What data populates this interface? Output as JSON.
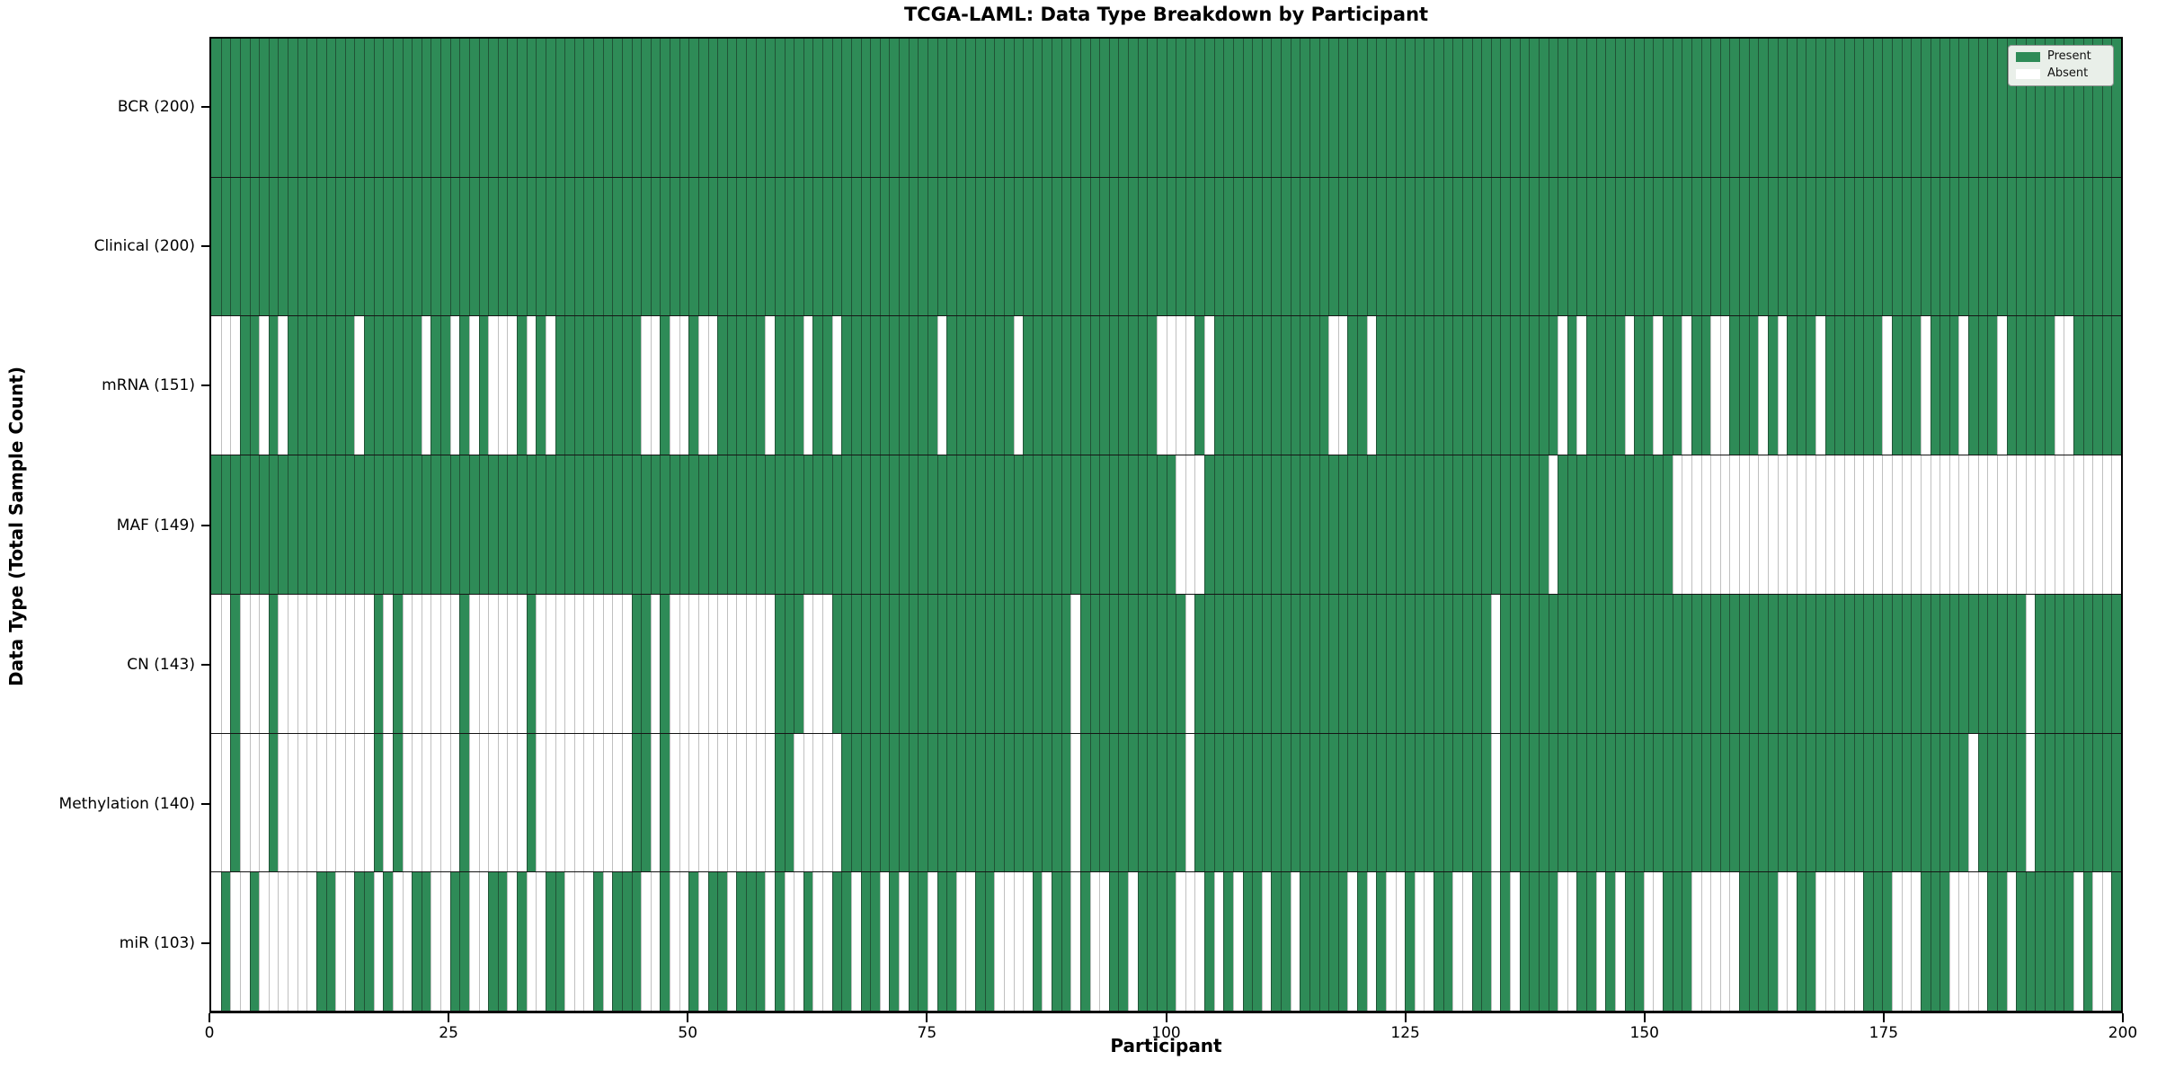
{
  "figure": {
    "title": "TCGA-LAML: Data Type Breakdown by Participant",
    "xlabel": "Participant",
    "ylabel": "Data Type (Total Sample Count)"
  },
  "colors": {
    "present": "#2e8b57",
    "absent": "#ffffff",
    "cell_edge_present": "rgba(22,38,28,0.55)",
    "cell_edge_absent": "rgba(150,150,150,0.6)",
    "row_divider": "#151515",
    "axis": "#000000",
    "legend_bg": "#e9efe9",
    "legend_border": "#999999"
  },
  "chart_data": {
    "type": "heatmap",
    "title": "TCGA-LAML: Data Type Breakdown by Participant",
    "xlabel": "Participant",
    "ylabel": "Data Type (Total Sample Count)",
    "x_range": [
      0,
      200
    ],
    "x_ticks": [
      0,
      25,
      50,
      75,
      100,
      125,
      150,
      175,
      200
    ],
    "n_participants": 200,
    "grid": false,
    "legend_position": "upper right",
    "legend": [
      {
        "label": "Present",
        "color": "#2e8b57"
      },
      {
        "label": "Absent",
        "color": "#ffffff"
      }
    ],
    "rows": [
      {
        "label": "BCR",
        "count": 200,
        "tick_label": "BCR (200)",
        "absent": []
      },
      {
        "label": "Clinical",
        "count": 200,
        "tick_label": "Clinical (200)",
        "absent": []
      },
      {
        "label": "mRNA",
        "count": 151,
        "tick_label": "mRNA (151)",
        "absent": [
          0,
          1,
          2,
          5,
          7,
          15,
          22,
          25,
          27,
          29,
          30,
          31,
          33,
          35,
          45,
          46,
          48,
          49,
          51,
          52,
          58,
          62,
          65,
          76,
          84,
          99,
          100,
          101,
          102,
          104,
          117,
          118,
          121,
          141,
          143,
          148,
          151,
          154,
          157,
          158,
          162,
          164,
          168,
          175,
          179,
          183,
          187,
          193,
          194
        ]
      },
      {
        "label": "MAF",
        "count": 149,
        "tick_label": "MAF (149)",
        "absent": [
          101,
          102,
          103,
          140,
          153,
          154,
          155,
          156,
          157,
          158,
          159,
          160,
          161,
          162,
          163,
          164,
          165,
          166,
          167,
          168,
          169,
          170,
          171,
          172,
          173,
          174,
          175,
          176,
          177,
          178,
          179,
          180,
          181,
          182,
          183,
          184,
          185,
          186,
          187,
          188,
          189,
          190,
          191,
          192,
          193,
          194,
          195,
          196,
          197,
          198,
          199
        ]
      },
      {
        "label": "CN",
        "count": 143,
        "tick_label": "CN (143)",
        "absent": [
          0,
          1,
          3,
          4,
          5,
          7,
          8,
          9,
          10,
          11,
          12,
          13,
          14,
          15,
          16,
          18,
          20,
          21,
          22,
          23,
          24,
          25,
          27,
          28,
          29,
          30,
          31,
          32,
          34,
          35,
          36,
          37,
          38,
          39,
          40,
          41,
          42,
          43,
          46,
          48,
          49,
          50,
          51,
          52,
          53,
          54,
          55,
          56,
          57,
          58,
          62,
          63,
          64,
          90,
          102,
          134,
          190
        ]
      },
      {
        "label": "Methylation",
        "count": 140,
        "tick_label": "Methylation (140)",
        "absent": [
          0,
          1,
          3,
          4,
          5,
          7,
          8,
          9,
          10,
          11,
          12,
          13,
          14,
          15,
          16,
          18,
          20,
          21,
          22,
          23,
          24,
          25,
          27,
          28,
          29,
          30,
          31,
          32,
          34,
          35,
          36,
          37,
          38,
          39,
          40,
          41,
          42,
          43,
          46,
          48,
          49,
          50,
          51,
          52,
          53,
          54,
          55,
          56,
          57,
          58,
          61,
          62,
          63,
          64,
          65,
          90,
          102,
          134,
          184,
          190
        ]
      },
      {
        "label": "miR",
        "count": 103,
        "tick_label": "miR (103)",
        "absent": [
          0,
          2,
          3,
          5,
          6,
          7,
          8,
          9,
          10,
          13,
          14,
          17,
          19,
          20,
          23,
          24,
          27,
          28,
          31,
          33,
          34,
          37,
          38,
          39,
          41,
          45,
          46,
          48,
          49,
          51,
          54,
          58,
          60,
          61,
          63,
          64,
          67,
          70,
          72,
          75,
          78,
          79,
          82,
          83,
          84,
          85,
          87,
          90,
          92,
          93,
          96,
          101,
          102,
          103,
          105,
          107,
          110,
          113,
          119,
          121,
          123,
          124,
          126,
          127,
          130,
          131,
          134,
          136,
          141,
          142,
          145,
          147,
          150,
          151,
          155,
          156,
          157,
          158,
          159,
          164,
          165,
          168,
          169,
          170,
          171,
          172,
          176,
          177,
          178,
          182,
          183,
          184,
          185,
          188,
          195,
          197,
          198
        ]
      }
    ]
  }
}
